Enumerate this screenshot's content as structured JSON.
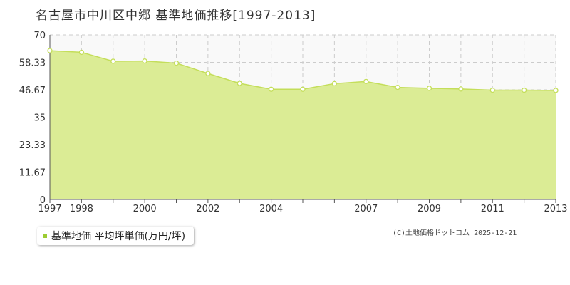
{
  "page": {
    "title": "名古屋市中川区中郷 基準地価推移[1997-2013]",
    "credit": "(C)土地価格ドットコム 2025-12-21"
  },
  "legend": {
    "label": "基準地価 平均坪単価(万円/坪)"
  },
  "colors": {
    "area_fill": "#dbec95",
    "line": "#c4de5a",
    "plot_background": "#f9f9f9",
    "grid": "#cccccc",
    "legend_marker": "#9ccc32"
  },
  "chart_data": {
    "type": "area",
    "title": "名古屋市中川区中郷 基準地価推移[1997-2013]",
    "xlabel": "",
    "ylabel": "",
    "x": [
      1997,
      1998,
      1999,
      2000,
      2001,
      2002,
      2003,
      2004,
      2005,
      2006,
      2007,
      2008,
      2009,
      2010,
      2011,
      2012,
      2013
    ],
    "x_tick_labels": [
      "1997",
      "1998",
      "2000",
      "2002",
      "2004",
      "2007",
      "2009",
      "2011",
      "2013"
    ],
    "y_ticks": [
      "0",
      "11.67",
      "23.33",
      "35",
      "46.67",
      "58.33",
      "70"
    ],
    "ylim": [
      0,
      70
    ],
    "grid": true,
    "series": [
      {
        "name": "基準地価 平均坪単価(万円/坪)",
        "values": [
          63.3,
          62.6,
          58.8,
          58.9,
          58.0,
          53.6,
          49.4,
          46.9,
          46.9,
          49.3,
          50.2,
          47.7,
          47.3,
          47.0,
          46.5,
          46.5,
          46.4
        ]
      }
    ]
  }
}
